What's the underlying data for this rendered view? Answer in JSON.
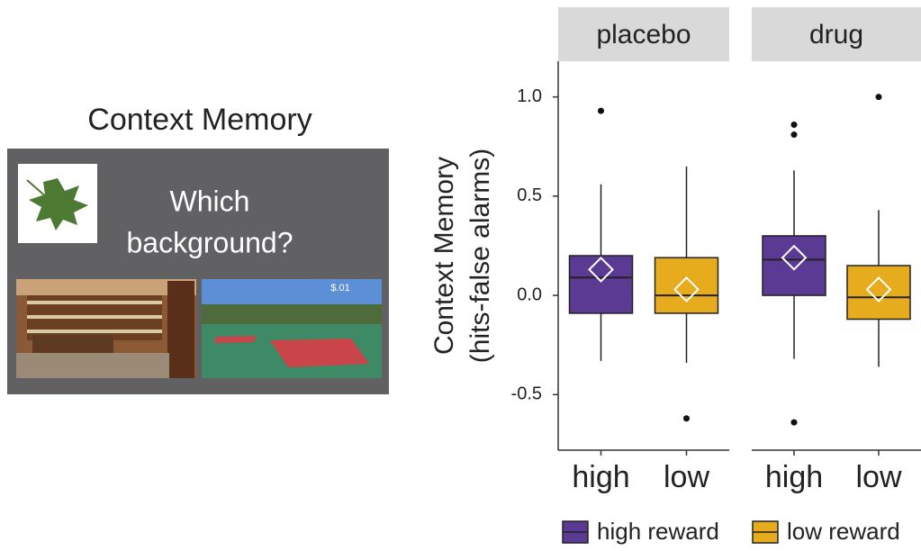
{
  "task_panel": {
    "title": "Context Memory",
    "question_lines": [
      "Which",
      "background?"
    ],
    "cost_label": "$.01"
  },
  "chart_data": {
    "type": "box",
    "y_label_lines": [
      "Context Memory",
      "(hits-false alarms)"
    ],
    "ylim": [
      -0.78,
      1.18
    ],
    "yticks": [
      -0.5,
      {
        "value": 0,
        "label": "0.0"
      },
      0.5,
      {
        "value": 1,
        "label": "1.0"
      }
    ],
    "series": [
      {
        "name": "high reward",
        "color": "#5b3a94"
      },
      {
        "name": "low reward",
        "color": "#e6ac1e"
      }
    ],
    "facets": [
      {
        "name": "placebo",
        "boxes": [
          {
            "category": "high",
            "series": 0,
            "min": -0.33,
            "q1": -0.09,
            "median": 0.09,
            "q3": 0.2,
            "max": 0.56,
            "mean": 0.13,
            "outliers": [
              0.93
            ]
          },
          {
            "category": "low",
            "series": 1,
            "min": -0.34,
            "q1": -0.09,
            "median": 0.0,
            "q3": 0.19,
            "max": 0.65,
            "mean": 0.03,
            "outliers": [
              -0.62
            ]
          }
        ]
      },
      {
        "name": "drug",
        "boxes": [
          {
            "category": "high",
            "series": 0,
            "min": -0.32,
            "q1": 0.0,
            "median": 0.18,
            "q3": 0.3,
            "max": 0.63,
            "mean": 0.19,
            "outliers": [
              0.86,
              0.81,
              -0.64
            ]
          },
          {
            "category": "low",
            "series": 1,
            "min": -0.36,
            "q1": -0.12,
            "median": -0.01,
            "q3": 0.15,
            "max": 0.43,
            "mean": 0.03,
            "outliers": [
              1.0
            ]
          }
        ]
      }
    ]
  }
}
